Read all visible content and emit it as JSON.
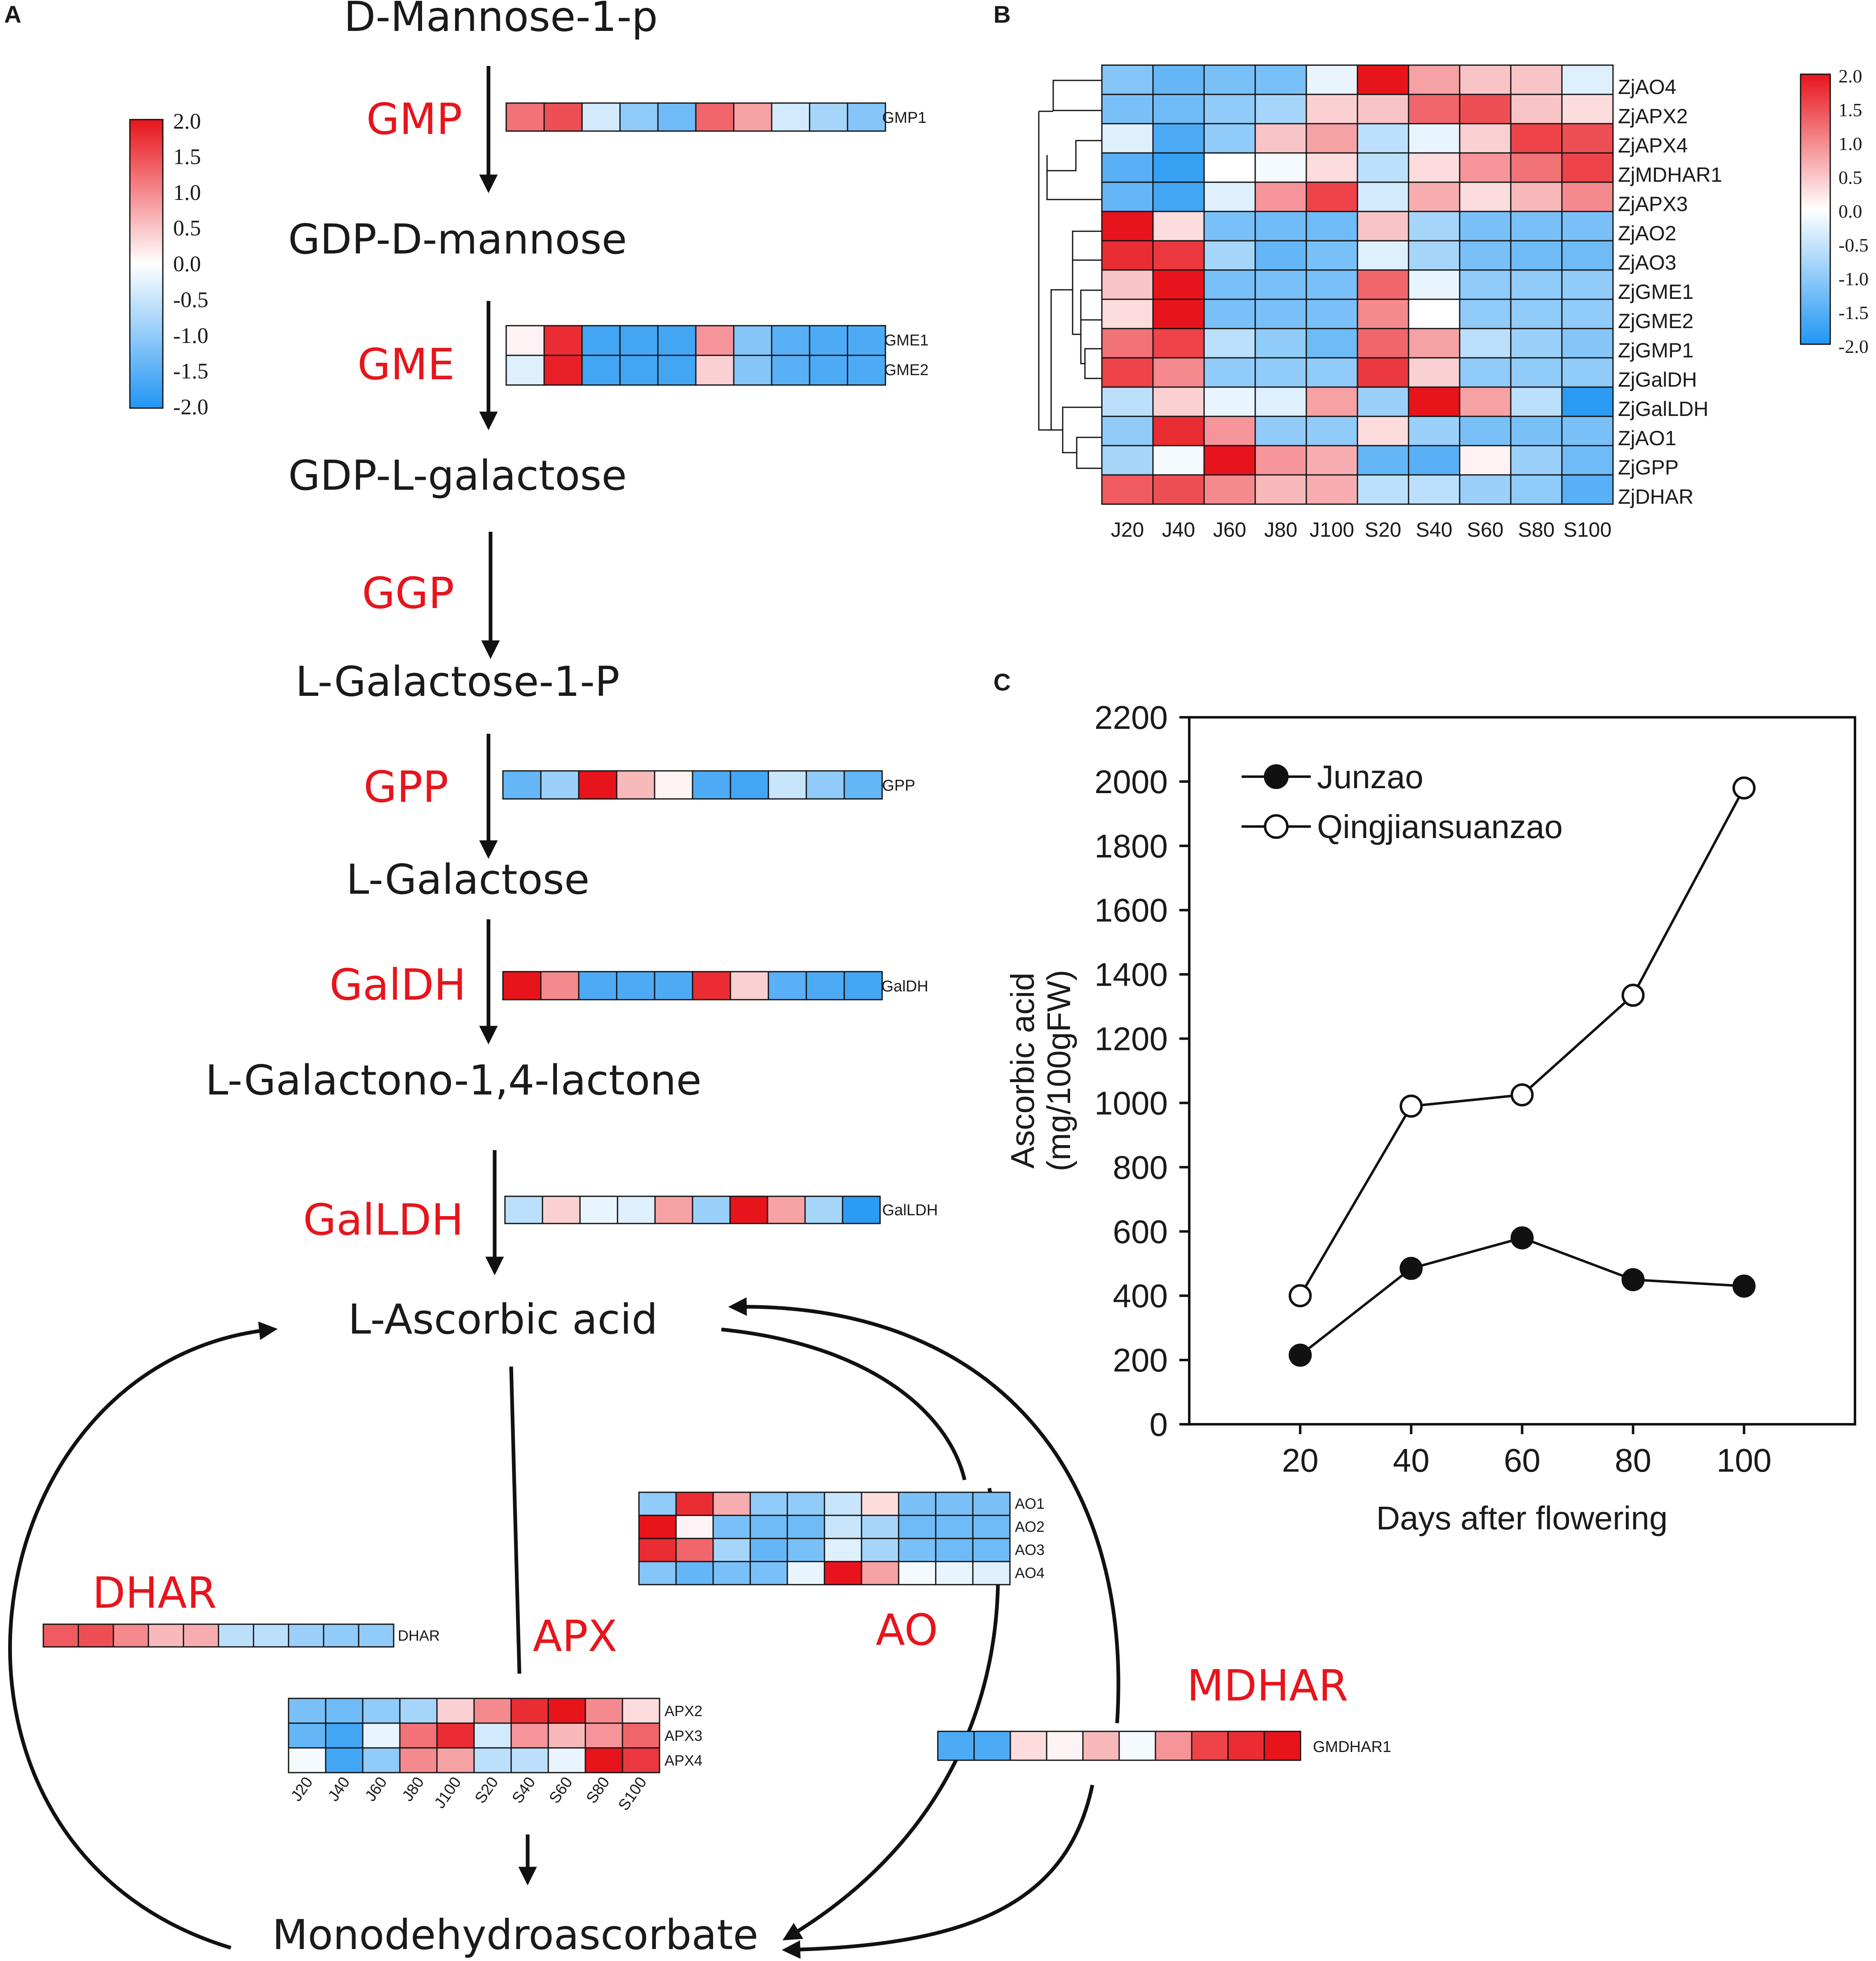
{
  "panel_letters": {
    "a": "A",
    "b": "B",
    "c": "C"
  },
  "palette": {
    "neg": "#2196f3",
    "mid": "#ffffff",
    "pos": "#e8141c",
    "ink": "#111111"
  },
  "colorbar": {
    "ticks": [
      "2.0",
      "1.5",
      "1.0",
      "0.5",
      "0.0",
      "-0.5",
      "-1.0",
      "-1.5",
      "-2.0"
    ]
  },
  "samples": [
    "J20",
    "J40",
    "J60",
    "J80",
    "J100",
    "S20",
    "S40",
    "S60",
    "S80",
    "S100"
  ],
  "pathway": {
    "metabolites": [
      "D-Mannose-1-p",
      "GDP-D-mannose",
      "GDP-L-galactose",
      "L-Galactose-1-P",
      "L-Galactose",
      "L-Galactono-1,4-lactone",
      "L-Ascorbic acid",
      "Monodehydroascorbate"
    ],
    "enzymes": [
      "GMP",
      "GME",
      "GGP",
      "GPP",
      "GalDH",
      "GalLDH",
      "DHAR",
      "APX",
      "AO",
      "MDHAR"
    ],
    "strips": [
      {
        "label": "GMP1",
        "values": [
          1.2,
          1.5,
          -0.4,
          -1.0,
          -1.3,
          1.3,
          0.8,
          -0.4,
          -0.8,
          -1.1
        ]
      },
      {
        "label": "GME1",
        "values": [
          0.1,
          1.8,
          -1.7,
          -1.7,
          -1.7,
          0.9,
          -1.1,
          -1.5,
          -1.6,
          -1.6
        ]
      },
      {
        "label": "GME2",
        "values": [
          -0.3,
          1.9,
          -1.7,
          -1.7,
          -1.7,
          0.4,
          -1.1,
          -1.5,
          -1.6,
          -1.6
        ]
      },
      {
        "label": "GPP",
        "values": [
          -1.4,
          -0.9,
          2.0,
          0.6,
          0.1,
          -1.6,
          -1.7,
          -0.5,
          -1.0,
          -1.4
        ]
      },
      {
        "label": "GalDH",
        "values": [
          2.0,
          1.0,
          -1.6,
          -1.6,
          -1.6,
          1.8,
          0.4,
          -1.5,
          -1.6,
          -1.7
        ]
      },
      {
        "label": "GalLDH",
        "values": [
          -0.6,
          0.4,
          -0.2,
          -0.3,
          0.8,
          -0.9,
          2.0,
          0.8,
          -0.8,
          -1.9
        ]
      },
      {
        "label": "DHAR",
        "values": [
          1.4,
          1.5,
          1.0,
          0.6,
          0.7,
          -0.6,
          -0.6,
          -0.9,
          -1.0,
          -1.0
        ]
      },
      {
        "label": "AO1",
        "values": [
          -1.0,
          1.8,
          0.7,
          -1.0,
          -1.0,
          -0.5,
          0.3,
          -1.2,
          -1.2,
          -1.2
        ]
      },
      {
        "label": "AO2",
        "values": [
          2.0,
          0.1,
          -1.2,
          -1.3,
          -1.3,
          -0.5,
          -0.8,
          -1.3,
          -1.3,
          -1.3
        ]
      },
      {
        "label": "AO3",
        "values": [
          1.8,
          1.3,
          -0.8,
          -1.4,
          -1.2,
          -0.3,
          -0.8,
          -1.2,
          -1.3,
          -1.3
        ]
      },
      {
        "label": "AO4",
        "values": [
          -1.1,
          -1.4,
          -1.2,
          -1.2,
          -0.2,
          2.0,
          0.8,
          -0.1,
          -0.2,
          -0.3
        ]
      },
      {
        "label": "APX2",
        "values": [
          -1.2,
          -1.3,
          -1.0,
          -0.8,
          0.4,
          1.0,
          1.8,
          2.0,
          1.0,
          0.3
        ]
      },
      {
        "label": "APX3",
        "values": [
          -1.4,
          -1.7,
          -0.2,
          1.2,
          1.8,
          -0.4,
          0.9,
          0.6,
          0.9,
          1.3
        ]
      },
      {
        "label": "APX4",
        "values": [
          -0.1,
          -1.7,
          -1.0,
          1.0,
          0.8,
          -0.6,
          -0.6,
          -0.2,
          2.0,
          1.7
        ]
      },
      {
        "label": "GMDHAR1",
        "values": [
          -1.6,
          -1.6,
          0.3,
          0.1,
          0.6,
          -0.1,
          0.9,
          1.6,
          1.8,
          2.0
        ]
      }
    ]
  },
  "heatmap_b": {
    "rows": [
      {
        "label": "ZjAO4",
        "values": [
          -1.1,
          -1.4,
          -1.2,
          -1.2,
          -0.2,
          2.0,
          0.8,
          0.5,
          0.5,
          -0.3
        ]
      },
      {
        "label": "ZjAPX2",
        "values": [
          -1.2,
          -1.3,
          -1.0,
          -0.8,
          0.4,
          0.5,
          1.3,
          1.5,
          0.5,
          0.3
        ]
      },
      {
        "label": "ZjAPX4",
        "values": [
          -0.3,
          -1.6,
          -1.0,
          0.5,
          0.8,
          -0.6,
          -0.2,
          0.4,
          1.6,
          1.5
        ]
      },
      {
        "label": "ZjMDHAR1",
        "values": [
          -1.5,
          -1.8,
          0.0,
          -0.1,
          0.3,
          -0.6,
          0.3,
          0.9,
          1.2,
          1.6
        ]
      },
      {
        "label": "ZjAPX3",
        "values": [
          -1.4,
          -1.7,
          -0.3,
          0.9,
          1.6,
          -0.4,
          0.7,
          0.3,
          0.6,
          1.0
        ]
      },
      {
        "label": "ZjAO2",
        "values": [
          2.0,
          0.3,
          -1.2,
          -1.3,
          -1.3,
          0.5,
          -0.8,
          -1.2,
          -1.2,
          -1.2
        ]
      },
      {
        "label": "ZjAO3",
        "values": [
          1.8,
          1.7,
          -0.8,
          -1.4,
          -1.2,
          -0.3,
          -0.8,
          -1.2,
          -1.3,
          -1.3
        ]
      },
      {
        "label": "ZjGME1",
        "values": [
          0.5,
          2.0,
          -1.2,
          -1.2,
          -1.2,
          1.3,
          -0.2,
          -1.0,
          -1.0,
          -1.0
        ]
      },
      {
        "label": "ZjGME2",
        "values": [
          0.3,
          2.0,
          -1.2,
          -1.2,
          -1.2,
          1.0,
          0.0,
          -1.0,
          -1.0,
          -1.0
        ]
      },
      {
        "label": "ZjGMP1",
        "values": [
          1.2,
          1.6,
          -0.6,
          -1.0,
          -1.3,
          1.3,
          0.8,
          -0.6,
          -0.9,
          -1.1
        ]
      },
      {
        "label": "ZjGalDH",
        "values": [
          1.6,
          1.0,
          -1.0,
          -1.0,
          -1.0,
          1.7,
          0.4,
          -1.0,
          -1.0,
          -1.0
        ]
      },
      {
        "label": "ZjGalLDH",
        "values": [
          -0.6,
          0.4,
          -0.2,
          -0.3,
          0.8,
          -0.9,
          2.0,
          0.8,
          -0.6,
          -1.9
        ]
      },
      {
        "label": "ZjAO1",
        "values": [
          -1.0,
          1.8,
          0.9,
          -1.0,
          -1.0,
          0.3,
          -0.9,
          -1.2,
          -1.2,
          -1.2
        ]
      },
      {
        "label": "ZjGPP",
        "values": [
          -0.8,
          -0.1,
          2.0,
          0.9,
          0.7,
          -1.4,
          -1.5,
          0.1,
          -0.9,
          -1.3
        ]
      },
      {
        "label": "ZjDHAR",
        "values": [
          1.4,
          1.5,
          1.0,
          0.6,
          0.7,
          -0.6,
          -0.6,
          -0.9,
          -1.0,
          -1.5
        ]
      }
    ]
  },
  "chart_data": {
    "type": "line",
    "title": "",
    "xlabel": "Days after flowering",
    "ylabel_line1": "Ascorbic acid",
    "ylabel_line2": "(mg/100gFW)",
    "x": [
      20,
      40,
      60,
      80,
      100
    ],
    "xticks": [
      "20",
      "40",
      "60",
      "80",
      "100"
    ],
    "yticks": [
      "0",
      "200",
      "400",
      "600",
      "800",
      "1000",
      "1200",
      "1400",
      "1600",
      "1800",
      "2000",
      "2200"
    ],
    "xlim": [
      0,
      120
    ],
    "ylim": [
      0,
      2200
    ],
    "legend_position": "top-left",
    "series": [
      {
        "name": "Junzao",
        "marker": "filled-circle",
        "values": [
          215,
          485,
          580,
          450,
          430
        ]
      },
      {
        "name": "Qingjiansuanzao",
        "marker": "open-circle",
        "values": [
          400,
          990,
          1025,
          1335,
          1980
        ]
      }
    ]
  }
}
